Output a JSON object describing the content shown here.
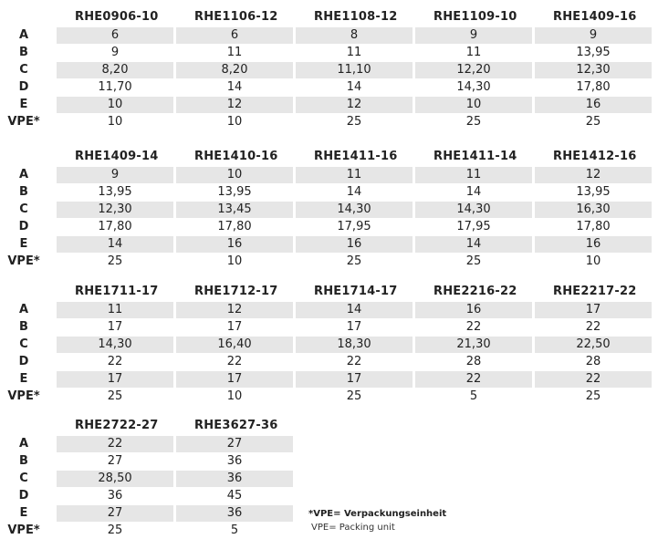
{
  "row_labels": [
    "A",
    "B",
    "C",
    "D",
    "E",
    "VPE*"
  ],
  "tables": [
    {
      "columns": [
        {
          "header": "RHE0906-10",
          "values": [
            "6",
            "9",
            "8,20",
            "11,70",
            "10",
            "10"
          ]
        },
        {
          "header": "RHE1106-12",
          "values": [
            "6",
            "11",
            "8,20",
            "14",
            "12",
            "10"
          ]
        },
        {
          "header": "RHE1108-12",
          "values": [
            "8",
            "11",
            "11,10",
            "14",
            "12",
            "25"
          ]
        },
        {
          "header": "RHE1109-10",
          "values": [
            "9",
            "11",
            "12,20",
            "14,30",
            "10",
            "25"
          ]
        },
        {
          "header": "RHE1409-16",
          "values": [
            "9",
            "13,95",
            "12,30",
            "17,80",
            "16",
            "25"
          ]
        }
      ]
    },
    {
      "columns": [
        {
          "header": "RHE1409-14",
          "values": [
            "9",
            "13,95",
            "12,30",
            "17,80",
            "14",
            "25"
          ]
        },
        {
          "header": "RHE1410-16",
          "values": [
            "10",
            "13,95",
            "13,45",
            "17,80",
            "16",
            "10"
          ]
        },
        {
          "header": "RHE1411-16",
          "values": [
            "11",
            "14",
            "14,30",
            "17,95",
            "16",
            "25"
          ]
        },
        {
          "header": "RHE1411-14",
          "values": [
            "11",
            "14",
            "14,30",
            "17,95",
            "14",
            "25"
          ]
        },
        {
          "header": "RHE1412-16",
          "values": [
            "12",
            "13,95",
            "16,30",
            "17,80",
            "16",
            "10"
          ]
        }
      ]
    },
    {
      "columns": [
        {
          "header": "RHE1711-17",
          "values": [
            "11",
            "17",
            "14,30",
            "22",
            "17",
            "25"
          ]
        },
        {
          "header": "RHE1712-17",
          "values": [
            "12",
            "17",
            "16,40",
            "22",
            "17",
            "10"
          ]
        },
        {
          "header": "RHE1714-17",
          "values": [
            "14",
            "17",
            "18,30",
            "22",
            "17",
            "25"
          ]
        },
        {
          "header": "RHE2216-22",
          "values": [
            "16",
            "22",
            "21,30",
            "28",
            "22",
            "5"
          ]
        },
        {
          "header": "RHE2217-22",
          "values": [
            "17",
            "22",
            "22,50",
            "28",
            "22",
            "25"
          ]
        }
      ]
    },
    {
      "columns": [
        {
          "header": "RHE2722-27",
          "values": [
            "22",
            "27",
            "28,50",
            "36",
            "27",
            "25"
          ]
        },
        {
          "header": "RHE3627-36",
          "values": [
            "27",
            "36",
            "36",
            "45",
            "36",
            "5"
          ]
        }
      ]
    }
  ],
  "footnote": {
    "line1": "*VPE= Verpackungseinheit",
    "line2": "VPE= Packing unit"
  },
  "colors": {
    "shade": "#e6e6e6",
    "text": "#222222"
  }
}
